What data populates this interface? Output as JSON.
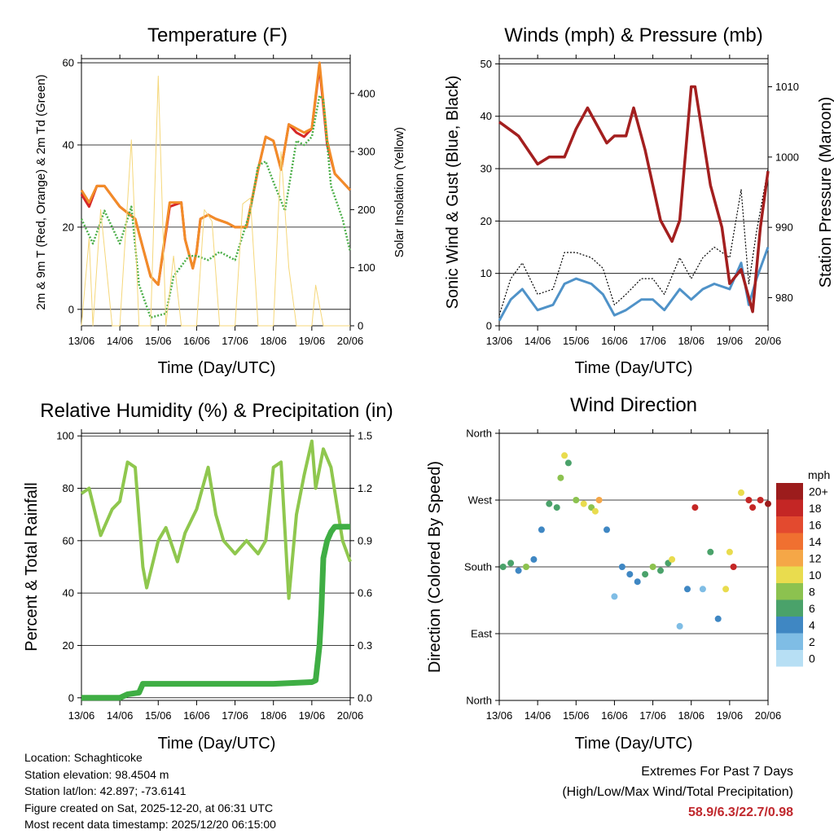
{
  "panels": {
    "temperature": {
      "title": "Temperature (F)",
      "ylabel": "2m & 9m T (Red, Orange) & 2m Td (Green)",
      "y2label": "Solar Insolation (Yellow)",
      "xlabel": "Time (Day/UTC)"
    },
    "winds": {
      "title": "Winds (mph) & Pressure (mb)",
      "ylabel": "Sonic Wind & Gust (Blue, Black)",
      "y2label": "Station Pressure (Maroon)",
      "xlabel": "Time (Day/UTC)"
    },
    "humidity": {
      "title": "Relative Humidity (%) & Precipitation (in)",
      "ylabel": "Percent & Total Rainfall",
      "xlabel": "Time (Day/UTC)"
    },
    "direction": {
      "title": "Wind Direction",
      "ylabel": "Direction (Colored By Speed)",
      "xlabel": "Time (Day/UTC)",
      "legend_title": "mph"
    }
  },
  "station": {
    "location": "Location: Schaghticoke",
    "elevation": "Station elevation: 98.4504 m",
    "latlon": "Station lat/lon: 42.897; -73.6141",
    "created": "Figure created on Sat, 2025-12-20, at 06:31 UTC",
    "recent": "Most recent data timestamp: 2025/12/20 06:15:00"
  },
  "extremes": {
    "line1": "Extremes For Past 7 Days",
    "line2": "(High/Low/Max Wind/Total Precipitation)",
    "values": "58.9/6.3/22.7/0.98"
  },
  "colors": {
    "temp2m": "#d62728",
    "temp9m": "#f28c28",
    "dewpoint": "#4daf4a",
    "insolation": "#f5d77a",
    "wind": "#4f92c8",
    "gust": "#000000",
    "pressure": "#a31f1f",
    "rh": "#8fc74e",
    "precip": "#3fae44"
  },
  "chart_data": [
    {
      "id": "temperature",
      "type": "line",
      "x_ticks": [
        "13/06",
        "14/06",
        "15/06",
        "16/06",
        "17/06",
        "18/06",
        "19/06",
        "20/06"
      ],
      "ylim": [
        -4,
        61
      ],
      "yticks": [
        0,
        20,
        40,
        60
      ],
      "y2lim": [
        0,
        460
      ],
      "y2ticks": [
        0,
        100,
        200,
        300,
        400
      ],
      "series": [
        {
          "name": "2m T",
          "axis": "y",
          "color": "#d62728",
          "x": [
            0,
            0.2,
            0.4,
            0.6,
            1.0,
            1.4,
            1.6,
            1.8,
            2.0,
            2.3,
            2.6,
            2.7,
            2.9,
            3.0,
            3.1,
            3.3,
            3.5,
            3.8,
            4.0,
            4.3,
            4.6,
            4.8,
            5.0,
            5.2,
            5.4,
            5.6,
            5.8,
            6.0,
            6.2,
            6.4,
            6.6,
            6.8,
            7.0
          ],
          "values": [
            28,
            25,
            30,
            30,
            25,
            22,
            15,
            8,
            6,
            25,
            26,
            17,
            10,
            14,
            22,
            23,
            22,
            21,
            20,
            20,
            34,
            42,
            41,
            34,
            45,
            43,
            42,
            44,
            59,
            40,
            33,
            31,
            29
          ]
        },
        {
          "name": "9m T",
          "axis": "y",
          "color": "#f28c28",
          "x": [
            0,
            0.2,
            0.4,
            0.6,
            1.0,
            1.4,
            1.6,
            1.8,
            2.0,
            2.3,
            2.6,
            2.7,
            2.9,
            3.0,
            3.1,
            3.3,
            3.5,
            3.8,
            4.0,
            4.3,
            4.6,
            4.8,
            5.0,
            5.2,
            5.4,
            5.6,
            5.8,
            6.0,
            6.2,
            6.4,
            6.6,
            6.8,
            7.0
          ],
          "values": [
            29,
            26,
            30,
            30,
            25,
            22,
            15,
            8,
            6,
            26,
            26,
            17,
            10,
            14,
            22,
            23,
            22,
            21,
            20,
            20,
            34,
            42,
            41,
            34,
            45,
            44,
            43,
            44,
            60,
            41,
            33,
            31,
            29
          ]
        },
        {
          "name": "2m Td",
          "axis": "y",
          "color": "#4daf4a",
          "x": [
            0,
            0.3,
            0.6,
            1.0,
            1.3,
            1.5,
            1.8,
            2.2,
            2.4,
            2.8,
            3.0,
            3.3,
            3.6,
            4.0,
            4.4,
            4.6,
            4.8,
            5.0,
            5.3,
            5.6,
            5.8,
            6.0,
            6.2,
            6.3,
            6.5,
            6.8,
            7.0
          ],
          "values": [
            22,
            16,
            24,
            16,
            25,
            6,
            -2,
            -1,
            8,
            13,
            13,
            12,
            14,
            12,
            24,
            35,
            36,
            31,
            24,
            41,
            40,
            42,
            52,
            51,
            30,
            22,
            14
          ]
        },
        {
          "name": "Solar Insolation",
          "axis": "y2",
          "color": "#f5d77a",
          "x": [
            0,
            0.2,
            0.3,
            0.5,
            0.8,
            1.0,
            1.3,
            1.5,
            1.8,
            2.0,
            2.2,
            2.4,
            2.6,
            3.0,
            3.2,
            3.4,
            3.6,
            4.0,
            4.2,
            4.4,
            4.6,
            5.0,
            5.2,
            5.4,
            5.6,
            6.0,
            6.1,
            6.3,
            6.5,
            7.0
          ],
          "values": [
            0,
            150,
            0,
            200,
            0,
            0,
            320,
            0,
            0,
            430,
            0,
            120,
            0,
            0,
            200,
            180,
            0,
            0,
            210,
            220,
            0,
            0,
            300,
            100,
            0,
            0,
            70,
            0,
            0,
            0
          ]
        }
      ]
    },
    {
      "id": "winds",
      "type": "line",
      "x_ticks": [
        "13/06",
        "14/06",
        "15/06",
        "16/06",
        "17/06",
        "18/06",
        "19/06",
        "20/06"
      ],
      "ylim": [
        0,
        51
      ],
      "yticks": [
        0,
        10,
        20,
        30,
        40,
        50
      ],
      "y2lim": [
        976,
        1014
      ],
      "y2ticks": [
        980,
        990,
        1000,
        1010
      ],
      "series": [
        {
          "name": "Sonic Wind",
          "axis": "y",
          "color": "#4f92c8",
          "x": [
            0,
            0.3,
            0.6,
            1.0,
            1.4,
            1.7,
            2.0,
            2.4,
            2.7,
            3.0,
            3.3,
            3.7,
            4.0,
            4.3,
            4.7,
            5.0,
            5.3,
            5.6,
            6.0,
            6.3,
            6.5,
            6.7,
            7.0
          ],
          "values": [
            1,
            5,
            7,
            3,
            4,
            8,
            9,
            8,
            6,
            2,
            3,
            5,
            5,
            3,
            7,
            5,
            7,
            8,
            7,
            12,
            4,
            9,
            15
          ]
        },
        {
          "name": "Gust",
          "axis": "y",
          "color": "#000000",
          "x": [
            0,
            0.3,
            0.6,
            1.0,
            1.4,
            1.7,
            2.0,
            2.4,
            2.7,
            3.0,
            3.3,
            3.7,
            4.0,
            4.3,
            4.7,
            5.0,
            5.3,
            5.6,
            6.0,
            6.3,
            6.5,
            6.7,
            7.0
          ],
          "values": [
            2,
            9,
            12,
            6,
            7,
            14,
            14,
            13,
            11,
            4,
            6,
            9,
            9,
            6,
            13,
            9,
            13,
            15,
            13,
            26,
            8,
            18,
            30
          ]
        },
        {
          "name": "Station Pressure",
          "axis": "y2",
          "color": "#a31f1f",
          "x": [
            0,
            0.5,
            1.0,
            1.3,
            1.7,
            2.0,
            2.3,
            2.8,
            3.0,
            3.3,
            3.5,
            3.8,
            4.2,
            4.5,
            4.7,
            5.0,
            5.1,
            5.5,
            5.8,
            6.0,
            6.3,
            6.6,
            6.8,
            7.0
          ],
          "values": [
            1005,
            1003,
            999,
            1000,
            1000,
            1004,
            1007,
            1002,
            1003,
            1003,
            1007,
            1001,
            991,
            988,
            991,
            1010,
            1010,
            996,
            990,
            982,
            984,
            978,
            990,
            998
          ]
        }
      ]
    },
    {
      "id": "humidity",
      "type": "line",
      "x_ticks": [
        "13/06",
        "14/06",
        "15/06",
        "16/06",
        "17/06",
        "18/06",
        "19/06",
        "20/06"
      ],
      "ylim": [
        -1,
        101
      ],
      "yticks": [
        0,
        20,
        40,
        60,
        80,
        100
      ],
      "y2lim": [
        -0.015,
        1.515
      ],
      "y2ticks": [
        0.0,
        0.3,
        0.6,
        0.9,
        1.2,
        1.5
      ],
      "series": [
        {
          "name": "Relative Humidity",
          "axis": "y",
          "color": "#8fc74e",
          "x": [
            0,
            0.2,
            0.5,
            0.8,
            1.0,
            1.2,
            1.4,
            1.6,
            1.7,
            2.0,
            2.2,
            2.5,
            2.7,
            3.0,
            3.3,
            3.5,
            3.7,
            4.0,
            4.3,
            4.6,
            4.8,
            5.0,
            5.2,
            5.4,
            5.6,
            5.8,
            6.0,
            6.1,
            6.3,
            6.5,
            6.8,
            7.0
          ],
          "values": [
            78,
            80,
            62,
            72,
            75,
            90,
            88,
            50,
            42,
            60,
            65,
            52,
            63,
            72,
            88,
            70,
            60,
            55,
            60,
            55,
            60,
            88,
            90,
            38,
            70,
            85,
            98,
            80,
            95,
            88,
            60,
            52
          ]
        },
        {
          "name": "Total Precipitation",
          "axis": "y2",
          "color": "#3fae44",
          "x": [
            0,
            1.0,
            1.2,
            1.5,
            1.6,
            2.0,
            3.0,
            4.0,
            5.0,
            6.0,
            6.1,
            6.2,
            6.25,
            6.3,
            6.4,
            6.5,
            6.6,
            7.0
          ],
          "values": [
            0,
            0,
            0.02,
            0.03,
            0.08,
            0.08,
            0.08,
            0.08,
            0.08,
            0.09,
            0.1,
            0.3,
            0.5,
            0.8,
            0.9,
            0.95,
            0.98,
            0.98
          ]
        }
      ]
    },
    {
      "id": "direction",
      "type": "scatter",
      "x_ticks": [
        "13/06",
        "14/06",
        "15/06",
        "16/06",
        "17/06",
        "18/06",
        "19/06",
        "20/06"
      ],
      "ylim": [
        0,
        360
      ],
      "y_categories": [
        "North",
        "East",
        "South",
        "West",
        "North"
      ],
      "legend": {
        "labels": [
          "0",
          "2",
          "4",
          "6",
          "8",
          "10",
          "12",
          "14",
          "16",
          "18",
          "20+"
        ],
        "colors": [
          "#b7dff4",
          "#7fbde5",
          "#3f87c3",
          "#4aa26a",
          "#8cc24f",
          "#e9dc4e",
          "#f5a747",
          "#f07030",
          "#e34a2f",
          "#c42625",
          "#9c1c1c"
        ]
      },
      "points": [
        [
          0.1,
          180
        ],
        [
          0.3,
          185
        ],
        [
          0.5,
          175
        ],
        [
          0.7,
          180
        ],
        [
          0.9,
          190
        ],
        [
          1.1,
          230
        ],
        [
          1.3,
          265
        ],
        [
          1.5,
          260
        ],
        [
          1.6,
          300
        ],
        [
          1.7,
          330
        ],
        [
          1.8,
          320
        ],
        [
          2.0,
          270
        ],
        [
          2.2,
          265
        ],
        [
          2.4,
          260
        ],
        [
          2.5,
          255
        ],
        [
          2.6,
          270
        ],
        [
          2.8,
          230
        ],
        [
          3.0,
          140
        ],
        [
          3.2,
          180
        ],
        [
          3.4,
          170
        ],
        [
          3.6,
          160
        ],
        [
          3.8,
          170
        ],
        [
          4.0,
          180
        ],
        [
          4.2,
          175
        ],
        [
          4.4,
          185
        ],
        [
          4.5,
          190
        ],
        [
          4.7,
          100
        ],
        [
          4.9,
          150
        ],
        [
          5.1,
          260
        ],
        [
          5.3,
          150
        ],
        [
          5.5,
          200
        ],
        [
          5.7,
          110
        ],
        [
          5.9,
          150
        ],
        [
          6.0,
          200
        ],
        [
          6.1,
          180
        ],
        [
          6.3,
          280
        ],
        [
          6.5,
          270
        ],
        [
          6.6,
          260
        ],
        [
          6.8,
          270
        ],
        [
          7.0,
          265
        ]
      ],
      "point_speeds": [
        5,
        6,
        4,
        8,
        4,
        3,
        6,
        5,
        8,
        9,
        6,
        7,
        9,
        8,
        10,
        12,
        3,
        2,
        3,
        4,
        4,
        5,
        7,
        6,
        6,
        9,
        2,
        3,
        17,
        2,
        5,
        3,
        9,
        10,
        17,
        10,
        18,
        17,
        18,
        19
      ]
    }
  ]
}
